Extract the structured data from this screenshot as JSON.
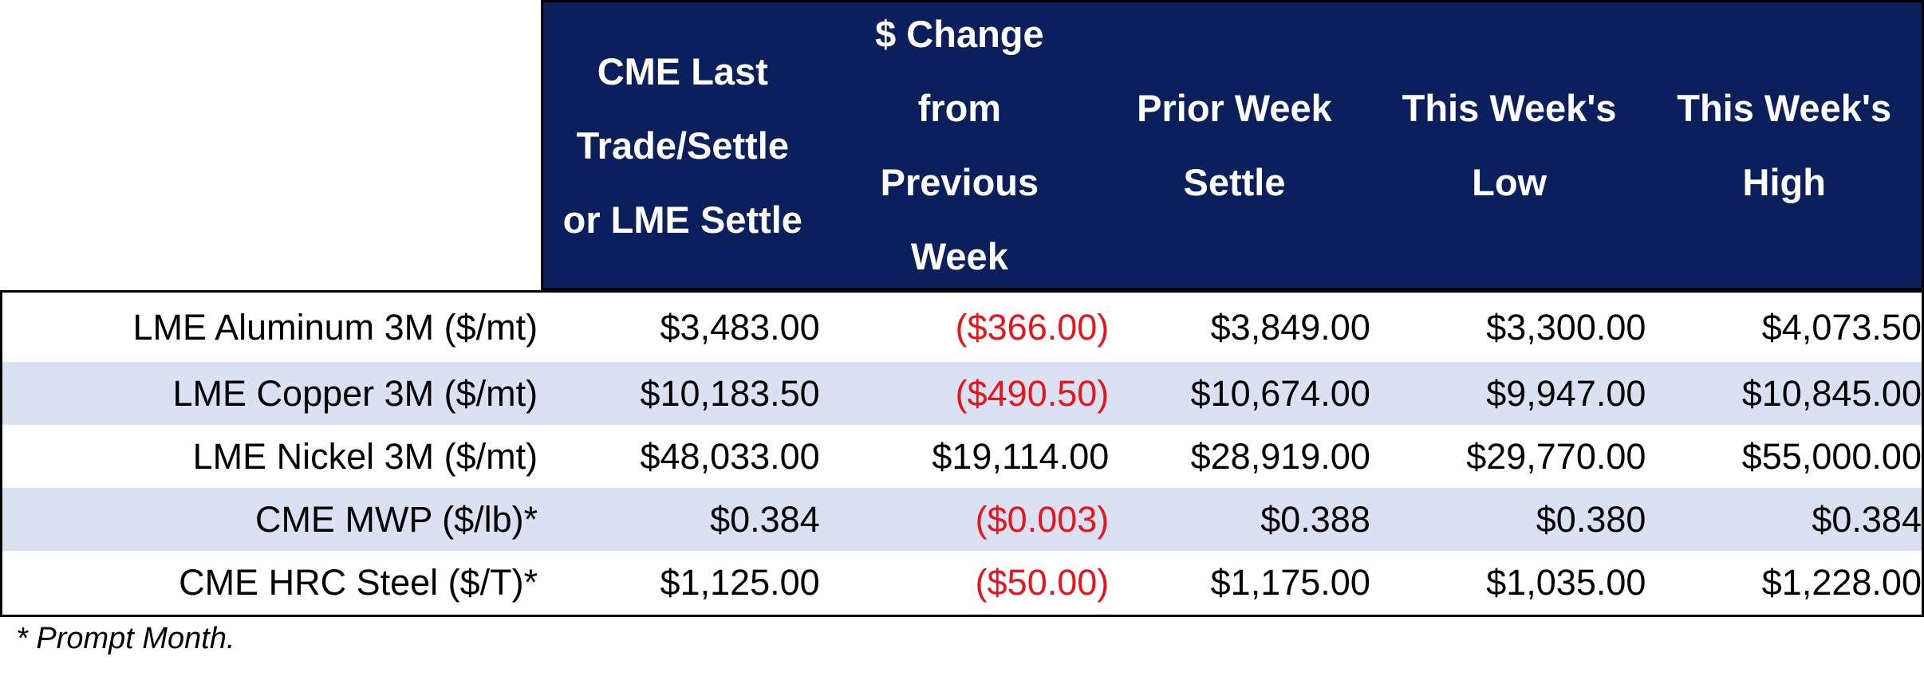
{
  "headers": [
    "CME Last\nTrade/Settle\nor LME Settle",
    "$ Change\nfrom\nPrevious\nWeek",
    "Prior Week\nSettle",
    "This Week's\nLow",
    "This Week's\nHigh"
  ],
  "rows": [
    {
      "label": "LME Aluminum 3M ($/mt)",
      "last": "$3,483.00",
      "change": "($366.00)",
      "prior": "$3,849.00",
      "low": "$3,300.00",
      "high": "$4,073.50"
    },
    {
      "label": "LME Copper 3M ($/mt)",
      "last": "$10,183.50",
      "change": "($490.50)",
      "prior": "$10,674.00",
      "low": "$9,947.00",
      "high": "$10,845.00"
    },
    {
      "label": "LME Nickel 3M ($/mt)",
      "last": "$48,033.00",
      "change": "$19,114.00",
      "prior": "$28,919.00",
      "low": "$29,770.00",
      "high": "$55,000.00"
    },
    {
      "label": "CME MWP ($/lb)*",
      "last": "$0.384",
      "change": "($0.003)",
      "prior": "$0.388",
      "low": "$0.380",
      "high": "$0.384"
    },
    {
      "label": "CME HRC Steel ($/T)*",
      "last": "$1,125.00",
      "change": "($50.00)",
      "prior": "$1,175.00",
      "low": "$1,035.00",
      "high": "$1,228.00"
    }
  ],
  "footnote": "* Prompt Month.",
  "colors": {
    "header_bg": "#0b1f5c",
    "alt_row_bg": "#d9e1f2",
    "negative_text": "#e8141b"
  }
}
